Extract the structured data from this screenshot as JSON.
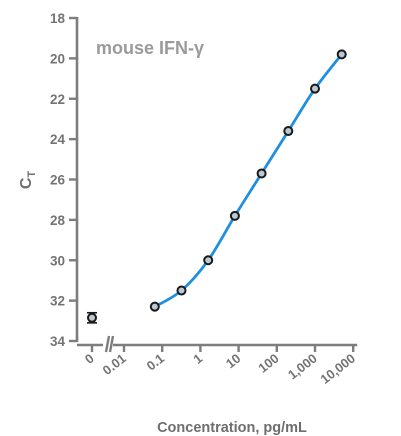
{
  "chart_data": {
    "type": "scatter",
    "title": "mouse IFN-γ",
    "xlabel": "Concentration, pg/mL",
    "ylabel_main": "C",
    "ylabel_sub": "T",
    "x_scale": "log",
    "y_inverted": true,
    "ylim": [
      18,
      34
    ],
    "y_ticks": [
      18,
      20,
      22,
      24,
      26,
      28,
      30,
      32,
      34
    ],
    "x_ticks": [
      0.01,
      0.1,
      1,
      10,
      100,
      1000,
      10000
    ],
    "x_tick_labels": [
      "0.01",
      "0.1",
      "1",
      "10",
      "100",
      "1,000",
      "10,000"
    ],
    "zero_label": "0",
    "grid": false,
    "series": [
      {
        "x": [
          0.064,
          0.32,
          1.6,
          8,
          40,
          200,
          1000,
          5000
        ],
        "y": [
          32.3,
          31.5,
          30.0,
          27.8,
          25.7,
          23.6,
          21.5,
          19.8
        ],
        "fit": true
      }
    ],
    "zero_point": {
      "x": 0,
      "y": 32.85,
      "error": 0.25
    },
    "colors": {
      "fit_line": "#1f8fe0",
      "marker_fill": "#bcc8d2",
      "axis": "#7d7d7d"
    }
  }
}
